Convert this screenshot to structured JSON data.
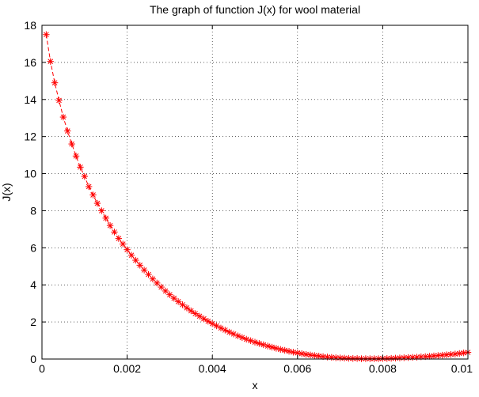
{
  "chart_data": {
    "type": "line",
    "title": "The graph of function J(x) for wool material",
    "xlabel": "x",
    "ylabel": "J(x)",
    "xlim": [
      0,
      0.01
    ],
    "ylim": [
      0,
      18
    ],
    "x_ticks": [
      0,
      0.002,
      0.004,
      0.006,
      0.008,
      0.01
    ],
    "x_tick_labels": [
      "0",
      "0.002",
      "0.004",
      "0.006",
      "0.008",
      "0.01"
    ],
    "y_ticks": [
      0,
      2,
      4,
      6,
      8,
      10,
      12,
      14,
      16,
      18
    ],
    "y_tick_labels": [
      "0",
      "2",
      "4",
      "6",
      "8",
      "10",
      "12",
      "14",
      "16",
      "18"
    ],
    "grid": true,
    "marker": "asterisk",
    "line_style": "dashed",
    "series_color": "#ff0000",
    "series": [
      {
        "x": [
          0.0001,
          0.0002,
          0.0003,
          0.0004,
          0.0005,
          0.0006,
          0.0007,
          0.0008,
          0.0009,
          0.001,
          0.0011,
          0.0012,
          0.0013,
          0.0014,
          0.0015,
          0.0016,
          0.0017,
          0.0018,
          0.0019,
          0.002,
          0.0021,
          0.0022,
          0.0023,
          0.0024,
          0.0025,
          0.0026,
          0.0027,
          0.0028,
          0.0029,
          0.003,
          0.0031,
          0.0032,
          0.0033,
          0.0034,
          0.0035,
          0.0036,
          0.0037,
          0.0038,
          0.0039,
          0.004,
          0.0041,
          0.0042,
          0.0043,
          0.0044,
          0.0045,
          0.0046,
          0.0047,
          0.0048,
          0.0049,
          0.005,
          0.0051,
          0.0052,
          0.0053,
          0.0054,
          0.0055,
          0.0056,
          0.0057,
          0.0058,
          0.0059,
          0.006,
          0.0061,
          0.0062,
          0.0063,
          0.0064,
          0.0065,
          0.0066,
          0.0067,
          0.0068,
          0.0069,
          0.007,
          0.0071,
          0.0072,
          0.0073,
          0.0074,
          0.0075,
          0.0076,
          0.0077,
          0.0078,
          0.0079,
          0.008,
          0.0081,
          0.0082,
          0.0083,
          0.0084,
          0.0085,
          0.0086,
          0.0087,
          0.0088,
          0.0089,
          0.009,
          0.0091,
          0.0092,
          0.0093,
          0.0094,
          0.0095,
          0.0096,
          0.0097,
          0.0098,
          0.0099,
          0.01
        ],
        "y": [
          17.5,
          16.05,
          14.9,
          13.95,
          13.05,
          12.3,
          11.6,
          10.95,
          10.35,
          9.85,
          9.3,
          8.85,
          8.4,
          8.0,
          7.6,
          7.2,
          6.85,
          6.5,
          6.2,
          5.9,
          5.6,
          5.33,
          5.06,
          4.8,
          4.56,
          4.32,
          4.1,
          3.88,
          3.67,
          3.47,
          3.28,
          3.1,
          2.93,
          2.76,
          2.6,
          2.45,
          2.31,
          2.17,
          2.04,
          1.91,
          1.79,
          1.67,
          1.56,
          1.45,
          1.35,
          1.25,
          1.16,
          1.07,
          0.99,
          0.91,
          0.84,
          0.77,
          0.7,
          0.64,
          0.58,
          0.52,
          0.47,
          0.42,
          0.37,
          0.33,
          0.29,
          0.25,
          0.22,
          0.19,
          0.16,
          0.13,
          0.11,
          0.09,
          0.07,
          0.06,
          0.05,
          0.04,
          0.03,
          0.03,
          0.02,
          0.02,
          0.02,
          0.02,
          0.02,
          0.03,
          0.03,
          0.04,
          0.05,
          0.06,
          0.07,
          0.08,
          0.09,
          0.1,
          0.12,
          0.13,
          0.15,
          0.17,
          0.19,
          0.21,
          0.23,
          0.25,
          0.27,
          0.3,
          0.33,
          0.36
        ]
      }
    ]
  }
}
